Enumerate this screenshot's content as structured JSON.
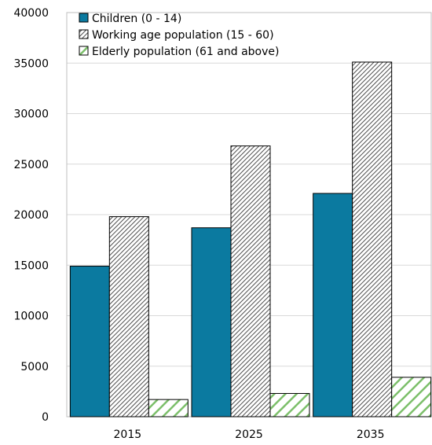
{
  "chart_data": {
    "type": "bar",
    "title": "",
    "xlabel": "",
    "ylabel": "",
    "categories": [
      "2015",
      "2025",
      "2035"
    ],
    "series": [
      {
        "name": "Children (0 - 14)",
        "values": [
          14900,
          18700,
          22100
        ],
        "color": "#0b7aa0",
        "pattern": "solid"
      },
      {
        "name": "Working age population (15 - 60)",
        "values": [
          19800,
          26800,
          35100
        ],
        "color": "#4d4d4d",
        "pattern": "dense-diagonal"
      },
      {
        "name": "Elderly population (61 and above)",
        "values": [
          1700,
          2300,
          3900
        ],
        "color": "#7cbf6a",
        "pattern": "wide-diagonal"
      }
    ],
    "ylim": [
      0,
      40000
    ],
    "yticks": [
      "0",
      "5000",
      "10000",
      "15000",
      "20000",
      "25000",
      "30000",
      "35000",
      "40000"
    ],
    "grid": true,
    "legend_position": "top-left"
  }
}
